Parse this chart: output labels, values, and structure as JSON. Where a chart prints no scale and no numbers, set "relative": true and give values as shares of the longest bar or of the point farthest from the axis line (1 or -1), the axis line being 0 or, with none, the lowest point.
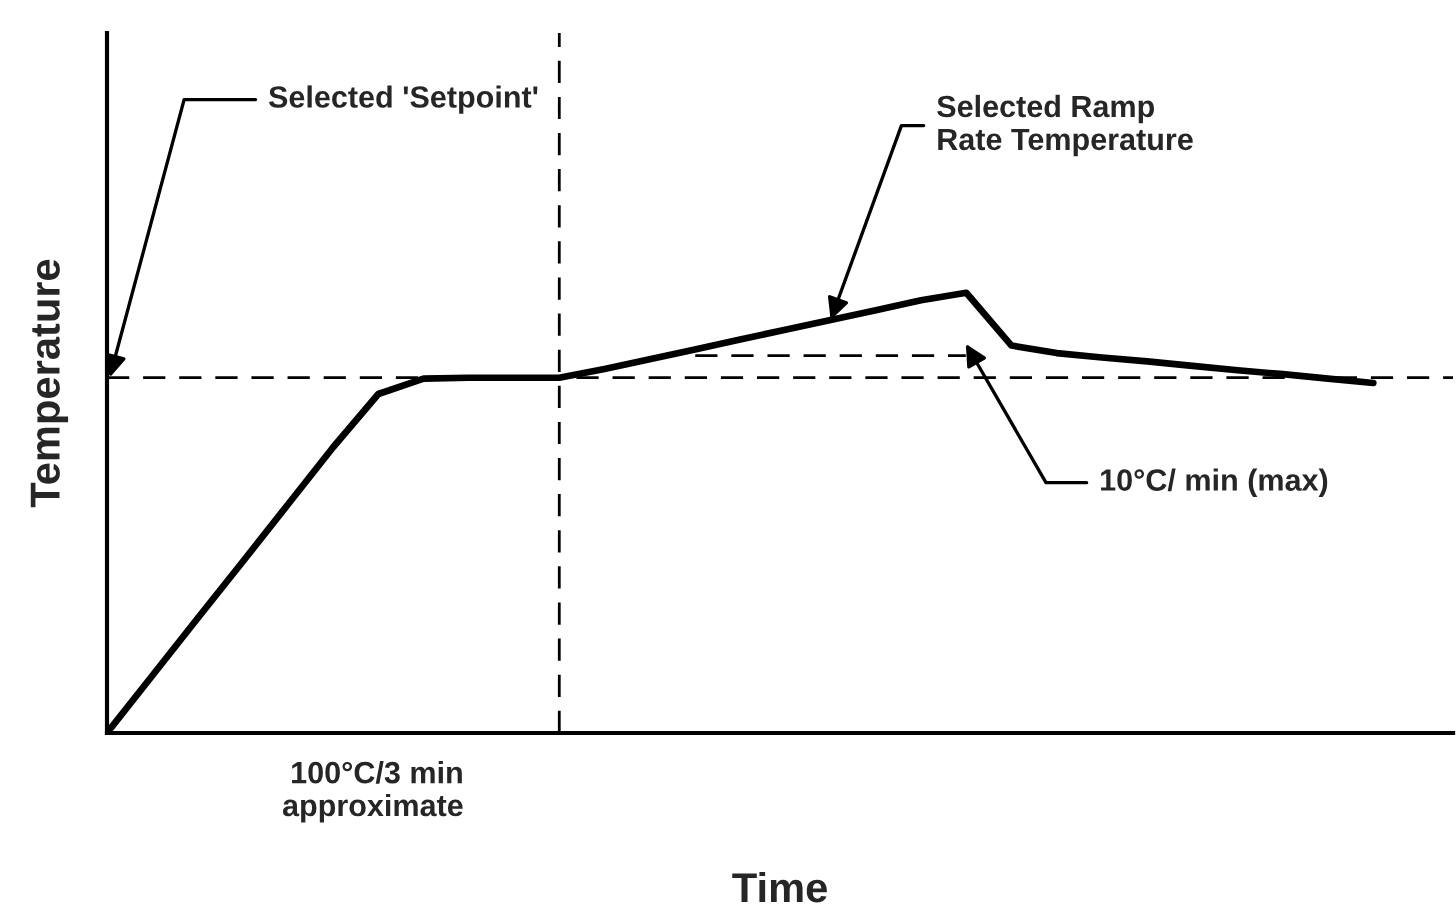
{
  "chart_data": {
    "type": "line",
    "relative": true,
    "xlabel": "Time",
    "ylabel": "Temperature",
    "tick_labels": false,
    "categories": [
      null,
      null,
      null,
      null,
      null,
      null,
      null,
      null,
      null,
      null,
      null,
      null,
      null,
      null,
      null,
      null,
      null,
      null,
      null,
      null,
      null,
      null,
      null,
      null,
      null,
      null,
      null,
      null,
      null
    ],
    "series": [
      {
        "color": "#000000",
        "values": [
          0,
          0.13,
          0.26,
          0.389,
          0.519,
          0.649,
          0.77,
          0.805,
          0.807,
          0.807,
          0.807,
          0.827,
          0.849,
          0.871,
          0.894,
          0.916,
          0.938,
          0.96,
          0.983,
          1.0,
          0.88,
          0.863,
          0.853,
          0.844,
          0.834,
          0.824,
          0.815,
          0.805,
          0.795
        ]
      }
    ],
    "ref_lines": [
      {
        "axis": "y",
        "value": 0.807,
        "line_style": "dashed",
        "color": "#000000"
      }
    ],
    "annotations": [
      "Selected 'Setpoint'",
      "Selected Ramp\nRate Temperature",
      "10°C/ min (max)",
      "100°C/3 min\napproximate"
    ]
  }
}
